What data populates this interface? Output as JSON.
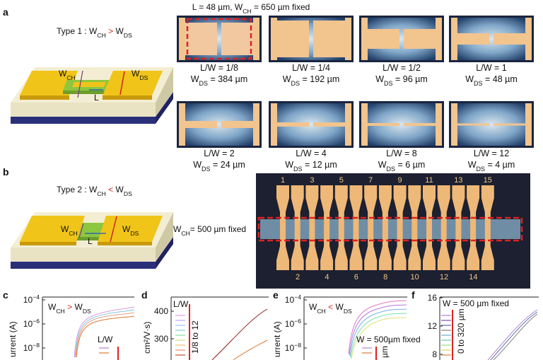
{
  "panel_labels": [
    "a",
    "b",
    "c",
    "d",
    "e",
    "f"
  ],
  "panel_a": {
    "header": [
      {
        "text": "L = 48 µm, W"
      },
      {
        "text": "CH",
        "sub": true
      },
      {
        "text": " = 650 µm fixed"
      }
    ],
    "type_label": [
      {
        "text": "Type 1 : W"
      },
      {
        "text": "CH",
        "sub": true
      },
      {
        "text": " > ",
        "color": "#e0201c"
      },
      {
        "text": "W"
      },
      {
        "text": "DS",
        "sub": true
      }
    ],
    "device_labels": {
      "w_ch": [
        {
          "text": "W"
        },
        {
          "text": "CH",
          "sub": true
        }
      ],
      "l": [
        {
          "text": "L"
        }
      ],
      "w_ds": [
        {
          "text": "W"
        },
        {
          "text": "DS",
          "sub": true
        }
      ]
    },
    "samples": [
      {
        "ratio": "L/W = 1/8",
        "wds": [
          {
            "text": "W"
          },
          {
            "text": "DS",
            "sub": true
          },
          {
            "text": " = 384 µm"
          }
        ]
      },
      {
        "ratio": "L/W = 1/4",
        "wds": [
          {
            "text": "W"
          },
          {
            "text": "DS",
            "sub": true
          },
          {
            "text": " = 192 µm"
          }
        ]
      },
      {
        "ratio": "L/W = 1/2",
        "wds": [
          {
            "text": "W"
          },
          {
            "text": "DS",
            "sub": true
          },
          {
            "text": " = 96 µm"
          }
        ]
      },
      {
        "ratio": "L/W = 1",
        "wds": [
          {
            "text": "W"
          },
          {
            "text": "DS",
            "sub": true
          },
          {
            "text": " = 48 µm"
          }
        ]
      },
      {
        "ratio": "L/W = 2",
        "wds": [
          {
            "text": "W"
          },
          {
            "text": "DS",
            "sub": true
          },
          {
            "text": " = 24 µm"
          }
        ]
      },
      {
        "ratio": "L/W = 4",
        "wds": [
          {
            "text": "W"
          },
          {
            "text": "DS",
            "sub": true
          },
          {
            "text": " = 12 µm"
          }
        ]
      },
      {
        "ratio": "L/W = 8",
        "wds": [
          {
            "text": "W"
          },
          {
            "text": "DS",
            "sub": true
          },
          {
            "text": " = 6 µm"
          }
        ]
      },
      {
        "ratio": "L/W = 12",
        "wds": [
          {
            "text": "W"
          },
          {
            "text": "DS",
            "sub": true
          },
          {
            "text": " = 4 µm"
          }
        ]
      }
    ]
  },
  "panel_b": {
    "type_label": [
      {
        "text": "Type 2 : W"
      },
      {
        "text": "CH",
        "sub": true
      },
      {
        "text": " < ",
        "color": "#e0201c"
      },
      {
        "text": "W"
      },
      {
        "text": "DS",
        "sub": true
      }
    ],
    "device_labels": {
      "w_ch": [
        {
          "text": "W"
        },
        {
          "text": "CH",
          "sub": true
        }
      ],
      "l": [
        {
          "text": "L"
        }
      ],
      "w_ds": [
        {
          "text": "W"
        },
        {
          "text": "DS",
          "sub": true
        }
      ]
    },
    "channel_label": [
      {
        "text": "W"
      },
      {
        "text": "CH",
        "sub": true
      },
      {
        "text": "= 500 µm fixed"
      }
    ],
    "electrodes_top": [
      "1",
      "3",
      "5",
      "7",
      "9",
      "11",
      "13",
      "15"
    ],
    "electrodes_bottom": [
      "2",
      "4",
      "6",
      "8",
      "10",
      "12",
      "14"
    ]
  },
  "panel_c": {
    "y_label": "urrent (A)",
    "yticks": [
      [
        {
          "text": "10"
        },
        {
          "text": "−4",
          "sup": true
        }
      ],
      [
        {
          "text": "10"
        },
        {
          "text": "−6",
          "sup": true
        }
      ],
      [
        {
          "text": "10"
        },
        {
          "text": "−8",
          "sup": true
        }
      ]
    ],
    "legend_title": [
      {
        "text": "W"
      },
      {
        "text": "CH",
        "sub": true
      },
      {
        "text": " > ",
        "color": "#e0201c"
      },
      {
        "text": "W"
      },
      {
        "text": "DS",
        "sub": true
      }
    ],
    "legend_label": "L/W"
  },
  "panel_d": {
    "y_label": "cm²/V·s)",
    "yticks": [
      "400",
      "300"
    ],
    "legend_title": "L/W",
    "legend_range": "1/8 to 12"
  },
  "panel_e": {
    "y_label": "urrent (A)",
    "yticks": [
      [
        {
          "text": "10"
        },
        {
          "text": "−4",
          "sup": true
        }
      ],
      [
        {
          "text": "10"
        },
        {
          "text": "−6",
          "sup": true
        }
      ],
      [
        {
          "text": "10"
        },
        {
          "text": "−8",
          "sup": true
        }
      ]
    ],
    "legend_title": [
      {
        "text": "W"
      },
      {
        "text": "CH",
        "sub": true
      },
      {
        "text": " < ",
        "color": "#e0201c"
      },
      {
        "text": "W"
      },
      {
        "text": "DS",
        "sub": true
      }
    ],
    "legend_note": "W = 500µm fixed",
    "legend_unit": "µm"
  },
  "panel_f": {
    "yticks": [
      "16",
      "12",
      "8"
    ],
    "legend_title": "W = 500 µm fixed",
    "legend_range": "0 to 320 µm"
  }
}
